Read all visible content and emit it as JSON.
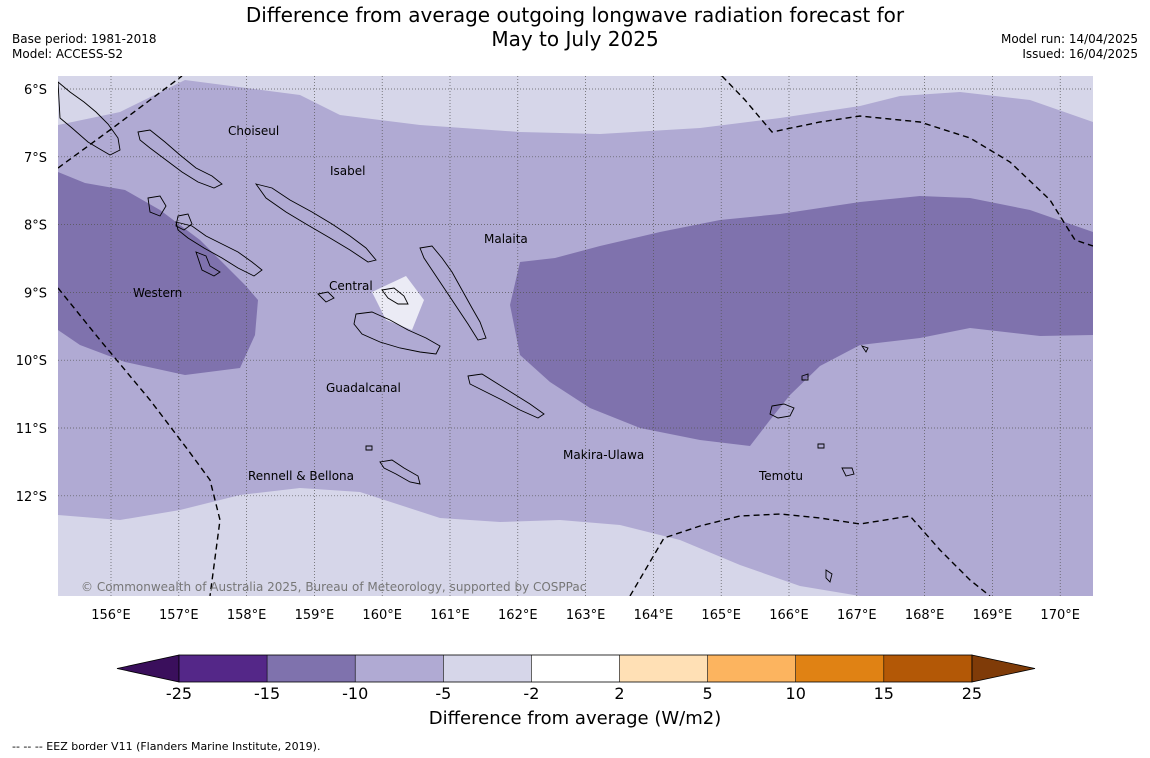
{
  "title_line1": "Difference from average outgoing longwave radiation forecast for",
  "title_line2": "May to July 2025",
  "meta_left": {
    "base_period": "Base period: 1981-2018",
    "model": "Model: ACCESS-S2"
  },
  "meta_right": {
    "model_run": "Model run: 14/04/2025",
    "issued": "Issued: 16/04/2025"
  },
  "map": {
    "lat_labels": [
      "6°S",
      "7°S",
      "8°S",
      "9°S",
      "10°S",
      "11°S",
      "12°S"
    ],
    "lon_labels": [
      "156°E",
      "157°E",
      "158°E",
      "159°E",
      "160°E",
      "161°E",
      "162°E",
      "163°E",
      "164°E",
      "165°E",
      "166°E",
      "167°E",
      "168°E",
      "169°E",
      "170°E"
    ],
    "places": [
      "Choiseul",
      "Isabel",
      "Malaita",
      "Western",
      "Central",
      "Guadalcanal",
      "Makira-Ulawa",
      "Rennell & Bellona",
      "Temotu"
    ],
    "copyright": "© Commonwealth of Australia 2025, Bureau of Meteorology, supported by COSPPac",
    "fill_colors": {
      "light": "#d6d6e9",
      "medium": "#b0aad3",
      "dark": "#7f72ad",
      "white": "#ffffff"
    }
  },
  "colorbar": {
    "tick_labels": [
      "-25",
      "-15",
      "-10",
      "-5",
      "-2",
      "2",
      "5",
      "10",
      "15",
      "25"
    ],
    "colors": [
      "#3a0f5c",
      "#542788",
      "#7f72ad",
      "#b0aad3",
      "#d6d6e9",
      "#ffffff",
      "#ffe0b5",
      "#fcb45f",
      "#e08214",
      "#b35806",
      "#7f3b08"
    ],
    "title": "Difference from average (W/m2)"
  },
  "footnote": "--  --  -- EEZ border V11 (Flanders Marine Institute, 2019)."
}
